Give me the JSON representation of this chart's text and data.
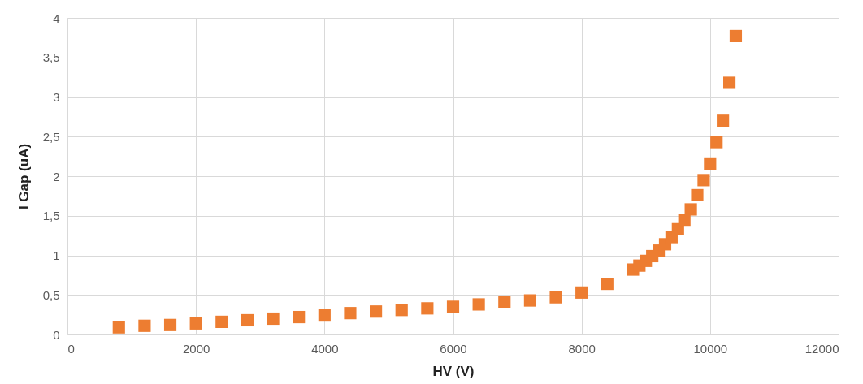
{
  "chart_data": {
    "type": "scatter",
    "xlabel": "HV (V)",
    "ylabel": "I Gap (uA)",
    "x": [
      800,
      1200,
      1600,
      2000,
      2400,
      2800,
      3200,
      3600,
      4000,
      4400,
      4800,
      5200,
      5600,
      6000,
      6400,
      6800,
      7200,
      7600,
      8000,
      8400,
      8800,
      8900,
      9000,
      9100,
      9200,
      9300,
      9400,
      9500,
      9600,
      9700,
      9800,
      9900,
      10000,
      10100,
      10200,
      10300,
      10400
    ],
    "series": [
      {
        "color": "#ed7d31",
        "values": [
          0.09,
          0.11,
          0.12,
          0.14,
          0.16,
          0.18,
          0.2,
          0.22,
          0.24,
          0.27,
          0.29,
          0.31,
          0.33,
          0.35,
          0.38,
          0.41,
          0.43,
          0.47,
          0.53,
          0.64,
          0.82,
          0.87,
          0.93,
          0.99,
          1.06,
          1.14,
          1.23,
          1.33,
          1.45,
          1.58,
          1.76,
          1.95,
          2.15,
          2.43,
          2.7,
          3.18,
          3.77
        ]
      }
    ],
    "xlim": [
      0,
      12000
    ],
    "xticks": [
      0,
      2000,
      4000,
      6000,
      8000,
      10000,
      12000
    ],
    "ylim": [
      0,
      4
    ],
    "yticks": [
      0,
      {
        "value": 0.5,
        "label": "0,5"
      },
      1,
      {
        "value": 1.5,
        "label": "1,5"
      },
      2,
      {
        "value": 2.5,
        "label": "2,5"
      },
      3,
      {
        "value": 3.5,
        "label": "3,5"
      },
      4
    ],
    "grid": true,
    "marker": "square"
  }
}
